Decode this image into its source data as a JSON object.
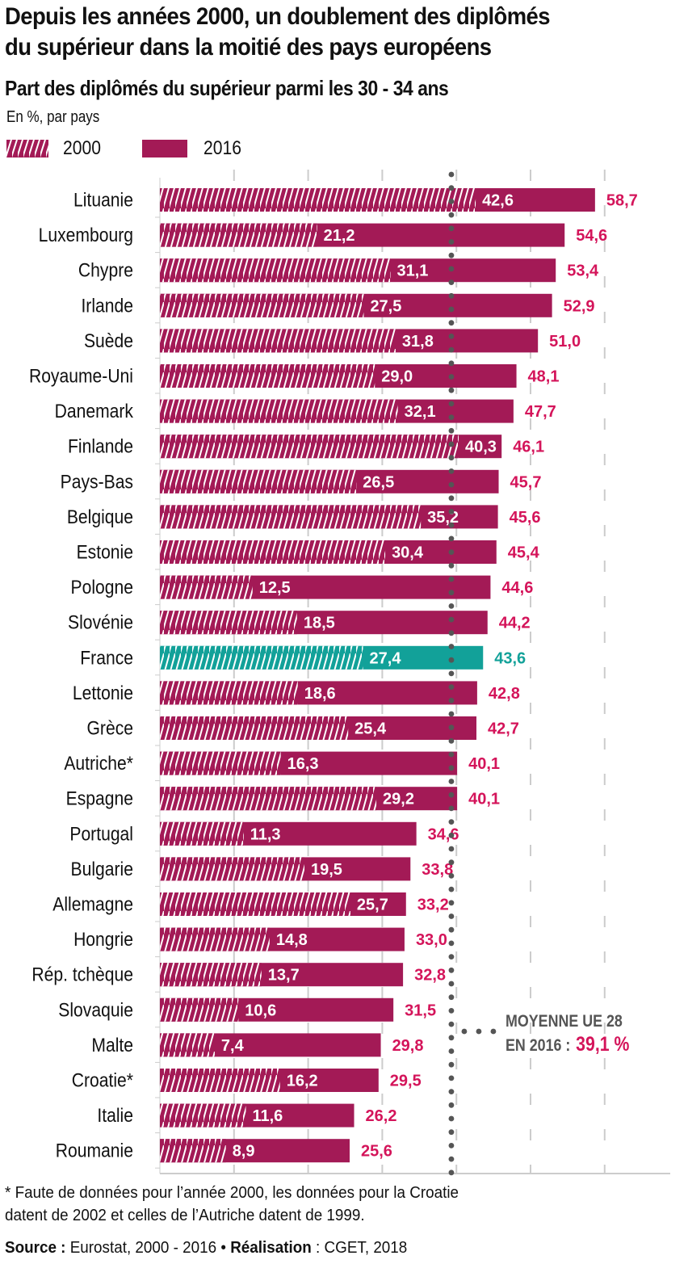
{
  "header": {
    "title_line1": "Depuis les années 2000, un doublement des diplômés",
    "title_line2": "du supérieur dans la moitié des pays européens",
    "subtitle": "Part des diplômés du supérieur parmi les 30 - 34 ans",
    "unit": "En %, par pays"
  },
  "legend": {
    "items": [
      {
        "label": "2000",
        "style": "hatched"
      },
      {
        "label": "2016",
        "style": "solid"
      }
    ]
  },
  "colors": {
    "bar": "#a31a56",
    "highlight": "#12a199",
    "value_2016": "#d4145a",
    "average_line": "#555555",
    "grid": "#cccccc"
  },
  "average": {
    "line1": "MOYENNE UE 28",
    "line2": "EN 2016 :",
    "value_label": "39,1 %",
    "value": 39.1
  },
  "footnote": {
    "line1": "* Faute de données pour l’année 2000, les données pour la Croatie",
    "line2": "datent de 2002 et celles de l’Autriche datent de 1999."
  },
  "source": {
    "source_label": "Source :",
    "source_text": " Eurostat, 2000 - 2016 • ",
    "credit_label": "Réalisation",
    "credit_text": " : CGET, 2018"
  },
  "chart_data": {
    "type": "bar",
    "orientation": "horizontal",
    "title": "Part des diplômés du supérieur parmi les 30 - 34 ans",
    "xlabel": "En %, par pays",
    "ylabel": "",
    "xlim": [
      0,
      68
    ],
    "grid": true,
    "gridlines_at": [
      10,
      20,
      30,
      40,
      50,
      60
    ],
    "legend_position": "top-left",
    "highlight_category": "France",
    "categories": [
      "Lituanie",
      "Luxembourg",
      "Chypre",
      "Irlande",
      "Suède",
      "Royaume-Uni",
      "Danemark",
      "Finlande",
      "Pays-Bas",
      "Belgique",
      "Estonie",
      "Pologne",
      "Slovénie",
      "France",
      "Lettonie",
      "Grèce",
      "Autriche*",
      "Espagne",
      "Portugal",
      "Bulgarie",
      "Allemagne",
      "Hongrie",
      "Rép. tchèque",
      "Slovaquie",
      "Malte",
      "Croatie*",
      "Italie",
      "Roumanie"
    ],
    "series": [
      {
        "name": "2000",
        "style": "hatched",
        "values": [
          42.6,
          21.2,
          31.1,
          27.5,
          31.8,
          29.0,
          32.1,
          40.3,
          26.5,
          35.2,
          30.4,
          12.5,
          18.5,
          27.4,
          18.6,
          25.4,
          16.3,
          29.2,
          11.3,
          19.5,
          25.7,
          14.8,
          13.7,
          10.6,
          7.4,
          16.2,
          11.6,
          8.9
        ],
        "labels": [
          "42,6",
          "21,2",
          "31,1",
          "27,5",
          "31,8",
          "29,0",
          "32,1",
          "40,3",
          "26,5",
          "35,2",
          "30,4",
          "12,5",
          "18,5",
          "27,4",
          "18,6",
          "25,4",
          "16,3",
          "29,2",
          "11,3",
          "19,5",
          "25,7",
          "14,8",
          "13,7",
          "10,6",
          "7,4",
          "16,2",
          "11,6",
          "8,9"
        ]
      },
      {
        "name": "2016",
        "style": "solid",
        "values": [
          58.7,
          54.6,
          53.4,
          52.9,
          51.0,
          48.1,
          47.7,
          46.1,
          45.7,
          45.6,
          45.4,
          44.6,
          44.2,
          43.6,
          42.8,
          42.7,
          40.1,
          40.1,
          34.6,
          33.8,
          33.2,
          33.0,
          32.8,
          31.5,
          29.8,
          29.5,
          26.2,
          25.6
        ],
        "labels": [
          "58,7",
          "54,6",
          "53,4",
          "52,9",
          "51,0",
          "48,1",
          "47,7",
          "46,1",
          "45,7",
          "45,6",
          "45,4",
          "44,6",
          "44,2",
          "43,6",
          "42,8",
          "42,7",
          "40,1",
          "40,1",
          "34,6",
          "33,8",
          "33,2",
          "33,0",
          "32,8",
          "31,5",
          "29,8",
          "29,5",
          "26,2",
          "25,6"
        ]
      }
    ],
    "reference_line": {
      "label": "MOYENNE UE 28 EN 2016",
      "value": 39.1
    }
  }
}
